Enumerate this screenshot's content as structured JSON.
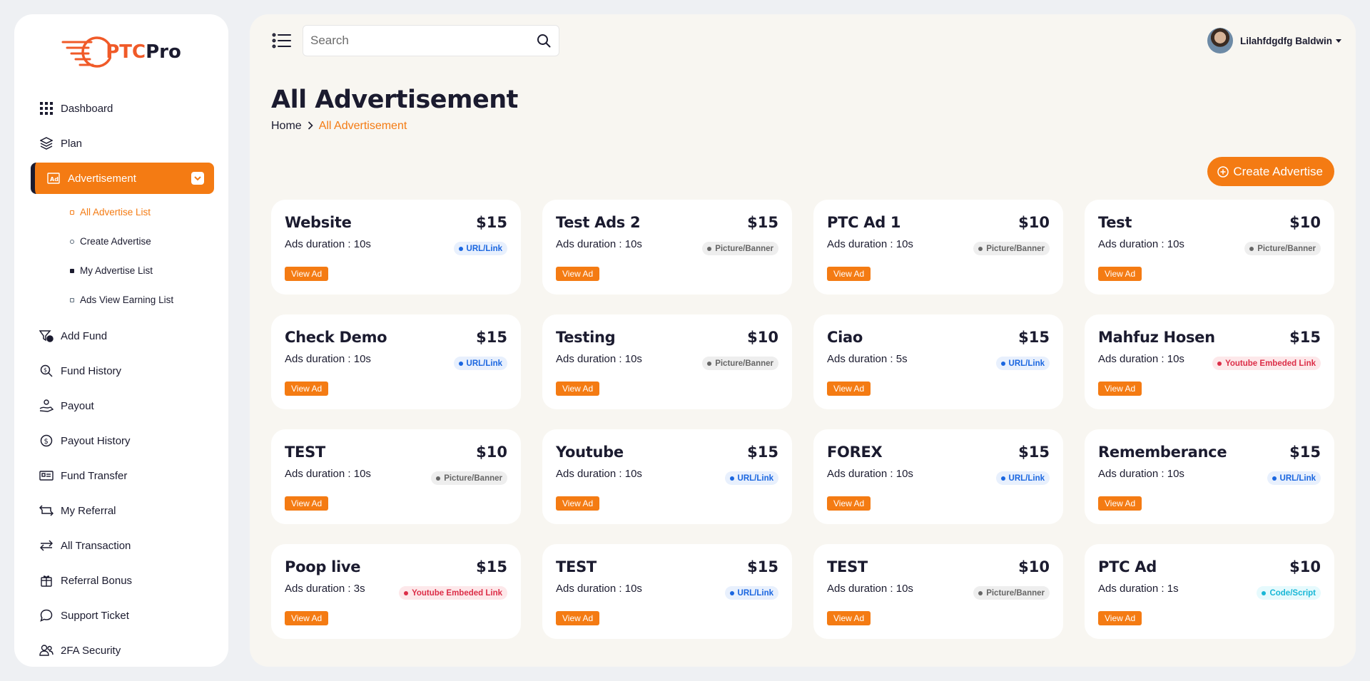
{
  "brand": {
    "logo_prefix": "PTC",
    "logo_suffix": "Pro",
    "accent": "#f47b13"
  },
  "sidebar": {
    "items": [
      {
        "label": "Dashboard",
        "icon": "grid-icon"
      },
      {
        "label": "Plan",
        "icon": "layers-icon"
      },
      {
        "label": "Advertisement",
        "icon": "ad-icon",
        "active": true
      },
      {
        "label": "Add Fund",
        "icon": "add-fund-icon"
      },
      {
        "label": "Fund History",
        "icon": "fund-history-icon"
      },
      {
        "label": "Payout",
        "icon": "payout-icon"
      },
      {
        "label": "Payout History",
        "icon": "payout-history-icon"
      },
      {
        "label": "Fund Transfer",
        "icon": "fund-transfer-icon"
      },
      {
        "label": "My Referral",
        "icon": "referral-icon"
      },
      {
        "label": "All Transaction",
        "icon": "transaction-icon"
      },
      {
        "label": "Referral Bonus",
        "icon": "gift-icon"
      },
      {
        "label": "Support Ticket",
        "icon": "chat-icon"
      },
      {
        "label": "2FA Security",
        "icon": "users-icon"
      }
    ],
    "submenu": [
      {
        "label": "All Advertise List"
      },
      {
        "label": "Create Advertise"
      },
      {
        "label": "My Advertise List"
      },
      {
        "label": "Ads View Earning List"
      }
    ]
  },
  "header": {
    "search_placeholder": "Search",
    "user_name": "Lilahfdgdfg Baldwin"
  },
  "page": {
    "title": "All Advertisement",
    "breadcrumb_home": "Home",
    "breadcrumb_current": "All Advertisement",
    "create_label": "Create Advertise",
    "view_label": "View Ad"
  },
  "ads": [
    {
      "title": "Website",
      "price": "$15",
      "duration": "Ads duration : 10s",
      "type": "URL/Link",
      "kind": "url"
    },
    {
      "title": "Test Ads 2",
      "price": "$15",
      "duration": "Ads duration : 10s",
      "type": "Picture/Banner",
      "kind": "pic"
    },
    {
      "title": "PTC Ad 1",
      "price": "$10",
      "duration": "Ads duration : 10s",
      "type": "Picture/Banner",
      "kind": "pic"
    },
    {
      "title": "Test",
      "price": "$10",
      "duration": "Ads duration : 10s",
      "type": "Picture/Banner",
      "kind": "pic"
    },
    {
      "title": "Check Demo",
      "price": "$15",
      "duration": "Ads duration : 10s",
      "type": "URL/Link",
      "kind": "url"
    },
    {
      "title": "Testing",
      "price": "$10",
      "duration": "Ads duration : 10s",
      "type": "Picture/Banner",
      "kind": "pic"
    },
    {
      "title": "Ciao",
      "price": "$15",
      "duration": "Ads duration : 5s",
      "type": "URL/Link",
      "kind": "url"
    },
    {
      "title": "Mahfuz Hosen",
      "price": "$15",
      "duration": "Ads duration : 10s",
      "type": "Youtube Embeded Link",
      "kind": "yt"
    },
    {
      "title": "TEST",
      "price": "$10",
      "duration": "Ads duration : 10s",
      "type": "Picture/Banner",
      "kind": "pic"
    },
    {
      "title": "Youtube",
      "price": "$15",
      "duration": "Ads duration : 10s",
      "type": "URL/Link",
      "kind": "url"
    },
    {
      "title": "FOREX",
      "price": "$15",
      "duration": "Ads duration : 10s",
      "type": "URL/Link",
      "kind": "url"
    },
    {
      "title": "Rememberance",
      "price": "$15",
      "duration": "Ads duration : 10s",
      "type": "URL/Link",
      "kind": "url"
    },
    {
      "title": "Poop live",
      "price": "$15",
      "duration": "Ads duration : 3s",
      "type": "Youtube Embeded Link",
      "kind": "yt"
    },
    {
      "title": "TEST",
      "price": "$15",
      "duration": "Ads duration : 10s",
      "type": "URL/Link",
      "kind": "url"
    },
    {
      "title": "TEST",
      "price": "$10",
      "duration": "Ads duration : 10s",
      "type": "Picture/Banner",
      "kind": "pic"
    },
    {
      "title": "PTC Ad",
      "price": "$10",
      "duration": "Ads duration : 1s",
      "type": "Code/Script",
      "kind": "code"
    }
  ]
}
